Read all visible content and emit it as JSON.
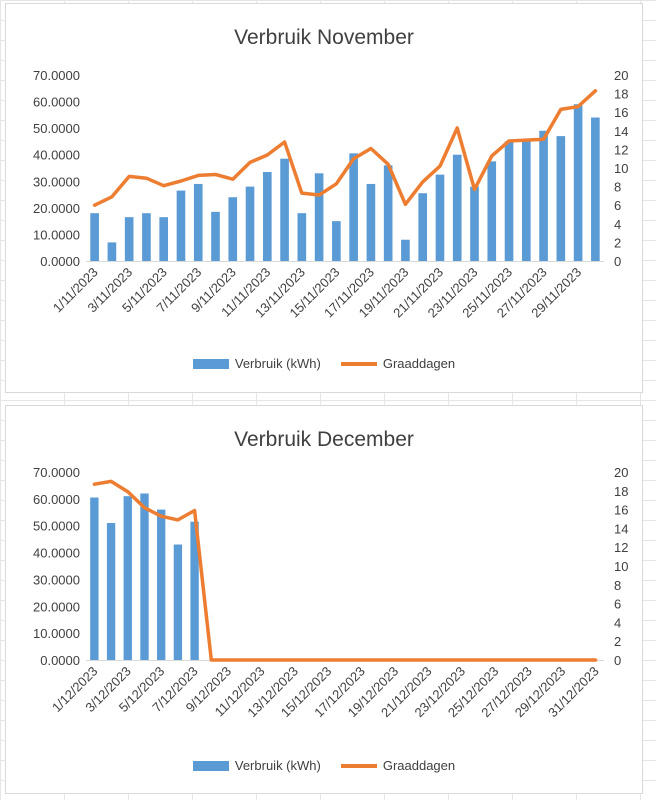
{
  "colors": {
    "bar": "#5b9bd5",
    "line": "#ed7d31",
    "grid": "#d9d9d9",
    "text": "#404040"
  },
  "chart_data": [
    {
      "id": "nov",
      "type": "bar",
      "title": "Verbruik November",
      "grid": false,
      "legend_position": "bottom",
      "x": [
        "1/11/2023",
        "2/11/2023",
        "3/11/2023",
        "4/11/2023",
        "5/11/2023",
        "6/11/2023",
        "7/11/2023",
        "8/11/2023",
        "9/11/2023",
        "10/11/2023",
        "11/11/2023",
        "12/11/2023",
        "13/11/2023",
        "14/11/2023",
        "15/11/2023",
        "16/11/2023",
        "17/11/2023",
        "18/11/2023",
        "19/11/2023",
        "20/11/2023",
        "21/11/2023",
        "22/11/2023",
        "23/11/2023",
        "24/11/2023",
        "25/11/2023",
        "26/11/2023",
        "27/11/2023",
        "28/11/2023",
        "29/11/2023",
        "30/11/2023"
      ],
      "x_tick_labels": [
        "1/11/2023",
        "3/11/2023",
        "5/11/2023",
        "7/11/2023",
        "9/11/2023",
        "11/11/2023",
        "13/11/2023",
        "15/11/2023",
        "17/11/2023",
        "19/11/2023",
        "21/11/2023",
        "23/11/2023",
        "25/11/2023",
        "27/11/2023",
        "29/11/2023"
      ],
      "y_ticks": [
        "0.0000",
        "10.0000",
        "20.0000",
        "30.0000",
        "40.0000",
        "50.0000",
        "60.0000",
        "70.0000"
      ],
      "ylim": [
        0,
        70
      ],
      "y2_ticks": [
        "0",
        "2",
        "4",
        "6",
        "8",
        "10",
        "12",
        "14",
        "16",
        "18",
        "20"
      ],
      "y2lim": [
        0,
        20
      ],
      "series": [
        {
          "name": "Verbruik (kWh)",
          "type": "bar",
          "axis": "left",
          "values": [
            18,
            7,
            16.5,
            18,
            16.5,
            26.5,
            29,
            18.5,
            24,
            28,
            33.5,
            38.5,
            18,
            33,
            15,
            40.5,
            29,
            36,
            8,
            25.5,
            32.5,
            40,
            28,
            37.5,
            45,
            45,
            49,
            47,
            59,
            54
          ]
        },
        {
          "name": "Graaddagen",
          "type": "line",
          "axis": "right",
          "values": [
            6,
            6.9,
            9.1,
            8.9,
            8.1,
            8.6,
            9.2,
            9.3,
            8.8,
            10.6,
            11.4,
            12.8,
            7.3,
            7.1,
            8.3,
            11,
            12.1,
            10.4,
            6.1,
            8.5,
            10.2,
            14.3,
            7.7,
            11.3,
            12.9,
            13,
            13.1,
            16.3,
            16.6,
            18.3
          ]
        }
      ]
    },
    {
      "id": "dec",
      "type": "bar",
      "title": "Verbruik December",
      "grid": false,
      "legend_position": "bottom",
      "x": [
        "1/12/2023",
        "2/12/2023",
        "3/12/2023",
        "4/12/2023",
        "5/12/2023",
        "6/12/2023",
        "7/12/2023",
        "8/12/2023",
        "9/12/2023",
        "10/12/2023",
        "11/12/2023",
        "12/12/2023",
        "13/12/2023",
        "14/12/2023",
        "15/12/2023",
        "16/12/2023",
        "17/12/2023",
        "18/12/2023",
        "19/12/2023",
        "20/12/2023",
        "21/12/2023",
        "22/12/2023",
        "23/12/2023",
        "24/12/2023",
        "25/12/2023",
        "26/12/2023",
        "27/12/2023",
        "28/12/2023",
        "29/12/2023",
        "30/12/2023",
        "31/12/2023"
      ],
      "x_tick_labels": [
        "1/12/2023",
        "3/12/2023",
        "5/12/2023",
        "7/12/2023",
        "9/12/2023",
        "11/12/2023",
        "13/12/2023",
        "15/12/2023",
        "17/12/2023",
        "19/12/2023",
        "21/12/2023",
        "23/12/2023",
        "25/12/2023",
        "27/12/2023",
        "29/12/2023",
        "31/12/2023"
      ],
      "y_ticks": [
        "0.0000",
        "10.0000",
        "20.0000",
        "30.0000",
        "40.0000",
        "50.0000",
        "60.0000",
        "70.0000"
      ],
      "ylim": [
        0,
        70
      ],
      "y2_ticks": [
        "0",
        "2",
        "4",
        "6",
        "8",
        "10",
        "12",
        "14",
        "16",
        "18",
        "20"
      ],
      "y2lim": [
        0,
        20
      ],
      "series": [
        {
          "name": "Verbruik (kWh)",
          "type": "bar",
          "axis": "left",
          "values": [
            60.5,
            51,
            61,
            62,
            56,
            43,
            51.5,
            0,
            0,
            0,
            0,
            0,
            0,
            0,
            0,
            0,
            0,
            0,
            0,
            0,
            0,
            0,
            0,
            0,
            0,
            0,
            0,
            0,
            0,
            0,
            0
          ]
        },
        {
          "name": "Graaddagen",
          "type": "line",
          "axis": "right",
          "values": [
            18.7,
            19,
            17.9,
            16.2,
            15.3,
            14.9,
            15.9,
            0,
            0,
            0,
            0,
            0,
            0,
            0,
            0,
            0,
            0,
            0,
            0,
            0,
            0,
            0,
            0,
            0,
            0,
            0,
            0,
            0,
            0,
            0,
            0
          ]
        }
      ]
    }
  ]
}
